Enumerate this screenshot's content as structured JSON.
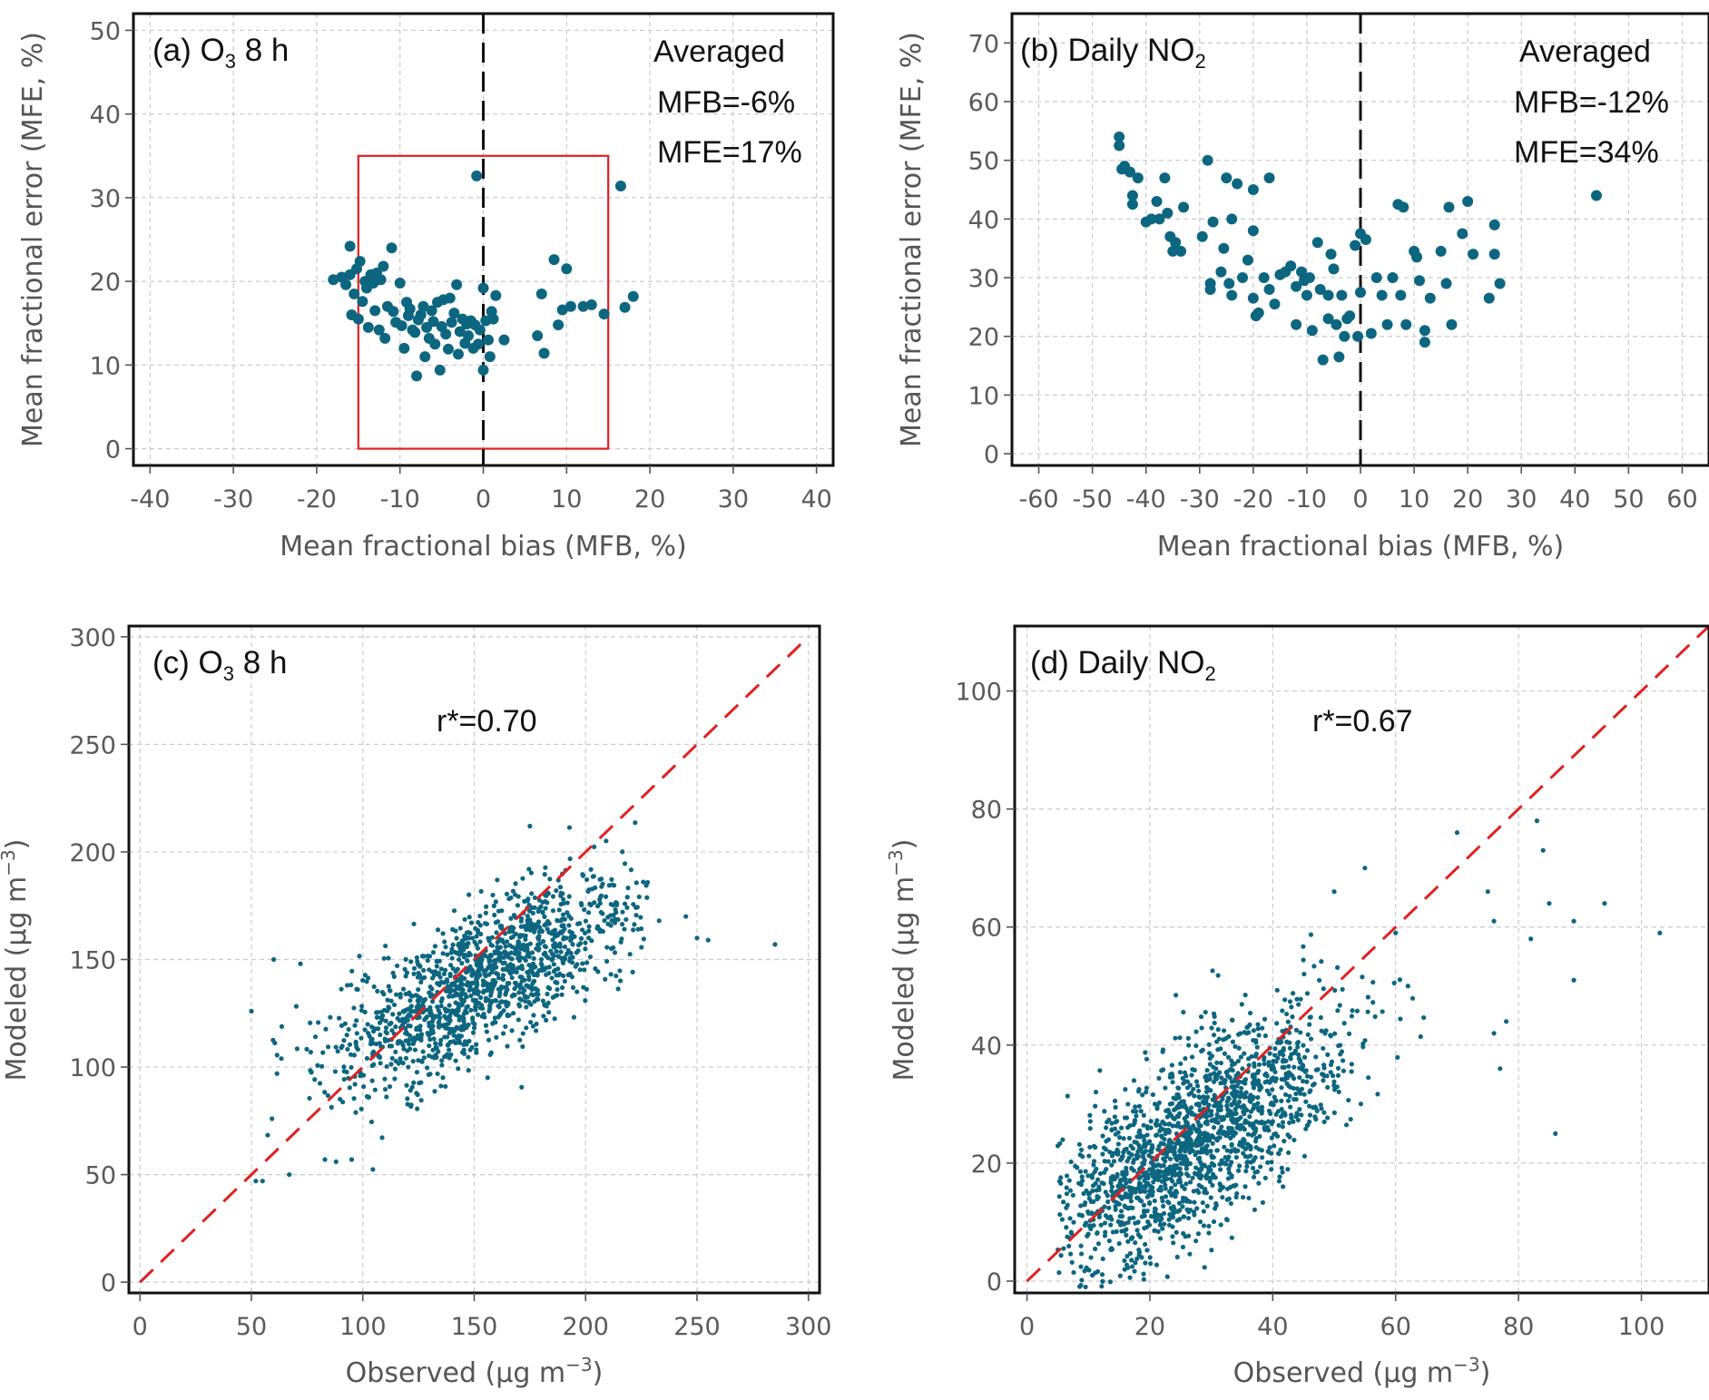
{
  "colors": {
    "points": "#0d6680",
    "reference_box": "#e02020",
    "one_to_one_line": "#e02020",
    "zero_line": "#111111"
  },
  "chart_data": [
    {
      "id": "a",
      "type": "scatter",
      "title_parts": [
        "(a)",
        "O",
        "3",
        " 8 h"
      ],
      "xlabel": "Mean fractional bias (MFB, %)",
      "ylabel": "Mean fractional error (MFE, %)",
      "xlim": [
        -42,
        42
      ],
      "ylim": [
        -2,
        52
      ],
      "xticks": [
        -40,
        -30,
        -20,
        -10,
        0,
        10,
        20,
        30,
        40
      ],
      "yticks": [
        0,
        10,
        20,
        30,
        40,
        50
      ],
      "zero_line_x": 0,
      "reference_box": {
        "x": [
          -15,
          15
        ],
        "y": [
          0,
          35
        ]
      },
      "annotations": [
        "Averaged",
        "MFB=-6%",
        "MFE=17%"
      ],
      "points": [
        [
          -18,
          20.2
        ],
        [
          -17,
          20.5
        ],
        [
          -16.5,
          19.6
        ],
        [
          -16,
          24.2
        ],
        [
          -16,
          20.8
        ],
        [
          -15.8,
          16
        ],
        [
          -15.5,
          18.5
        ],
        [
          -15.2,
          21.5
        ],
        [
          -15,
          15.5
        ],
        [
          -14.8,
          22.4
        ],
        [
          -14.5,
          17.6
        ],
        [
          -14.2,
          20
        ],
        [
          -14,
          19.2
        ],
        [
          -13.8,
          14.5
        ],
        [
          -13.5,
          20.8
        ],
        [
          -13.2,
          19.8
        ],
        [
          -13,
          16.5
        ],
        [
          -12.8,
          21
        ],
        [
          -12.5,
          14.2
        ],
        [
          -12.3,
          20.2
        ],
        [
          -12,
          21.8
        ],
        [
          -11.8,
          13.2
        ],
        [
          -11.5,
          17
        ],
        [
          -11,
          24
        ],
        [
          -10.8,
          16.4
        ],
        [
          -10.5,
          15.1
        ],
        [
          -10,
          19.8
        ],
        [
          -9.8,
          14.7
        ],
        [
          -9.5,
          12
        ],
        [
          -9.2,
          17.5
        ],
        [
          -9,
          15.9
        ],
        [
          -8.8,
          16.7
        ],
        [
          -8.5,
          14.2
        ],
        [
          -8.2,
          13.9
        ],
        [
          -8,
          8.7
        ],
        [
          -7.8,
          15.4
        ],
        [
          -7.5,
          16
        ],
        [
          -7.2,
          17
        ],
        [
          -7,
          11
        ],
        [
          -6.8,
          14.5
        ],
        [
          -6.5,
          13.2
        ],
        [
          -6.2,
          16.5
        ],
        [
          -6,
          15.2
        ],
        [
          -5.8,
          12.5
        ],
        [
          -5.5,
          17.5
        ],
        [
          -5.2,
          9.4
        ],
        [
          -5,
          14.6
        ],
        [
          -4.8,
          17.8
        ],
        [
          -4.5,
          13.7
        ],
        [
          -4.2,
          11.9
        ],
        [
          -4,
          18
        ],
        [
          -3.8,
          15.1
        ],
        [
          -3.5,
          16.2
        ],
        [
          -3.2,
          19.6
        ],
        [
          -3,
          11.3
        ],
        [
          -2.8,
          14
        ],
        [
          -2.5,
          15.5
        ],
        [
          -2.2,
          12.6
        ],
        [
          -2,
          14.9
        ],
        [
          -1.8,
          13.5
        ],
        [
          -1.5,
          15.3
        ],
        [
          -1.2,
          12
        ],
        [
          -1,
          14.8
        ],
        [
          -0.8,
          32.6
        ],
        [
          -0.6,
          12.5
        ],
        [
          -0.4,
          14.2
        ],
        [
          0,
          19.2
        ],
        [
          0,
          9.4
        ],
        [
          0.3,
          15.3
        ],
        [
          0.6,
          13
        ],
        [
          0.8,
          11
        ],
        [
          1,
          16.4
        ],
        [
          1.2,
          15.5
        ],
        [
          1.5,
          18.3
        ],
        [
          2.5,
          13
        ],
        [
          6.5,
          13.5
        ],
        [
          7,
          18.5
        ],
        [
          7.3,
          11.4
        ],
        [
          8.5,
          22.6
        ],
        [
          9,
          14.8
        ],
        [
          9.5,
          16.6
        ],
        [
          10,
          21.5
        ],
        [
          10.5,
          17
        ],
        [
          12,
          17
        ],
        [
          13,
          17.2
        ],
        [
          14.5,
          16.1
        ],
        [
          16.5,
          31.4
        ],
        [
          17,
          16.9
        ],
        [
          18,
          18.2
        ]
      ]
    },
    {
      "id": "b",
      "type": "scatter",
      "title_parts": [
        "(b)",
        " Daily NO",
        "2"
      ],
      "xlabel": "Mean fractional bias (MFB, %)",
      "ylabel": "Mean fractional error (MFE, %)",
      "xlim": [
        -65,
        65
      ],
      "ylim": [
        -2,
        75
      ],
      "xticks": [
        -60,
        -50,
        -40,
        -30,
        -20,
        -10,
        0,
        10,
        20,
        30,
        40,
        50,
        60
      ],
      "yticks": [
        0,
        10,
        20,
        30,
        40,
        50,
        60,
        70
      ],
      "zero_line_x": 0,
      "annotations": [
        "Averaged",
        "MFB=-12%",
        "MFE=34%"
      ],
      "points": [
        [
          -45,
          54
        ],
        [
          -45,
          52.5
        ],
        [
          -44.5,
          48.5
        ],
        [
          -44,
          49
        ],
        [
          -43,
          48
        ],
        [
          -42.5,
          44
        ],
        [
          -42.5,
          42.5
        ],
        [
          -41.5,
          47
        ],
        [
          -40,
          39.5
        ],
        [
          -39,
          40
        ],
        [
          -38,
          43
        ],
        [
          -37.5,
          40
        ],
        [
          -36.5,
          47
        ],
        [
          -36,
          41
        ],
        [
          -35.5,
          37
        ],
        [
          -35,
          34.5
        ],
        [
          -34.5,
          36
        ],
        [
          -33.5,
          34.5
        ],
        [
          -33,
          42
        ],
        [
          -29.5,
          37
        ],
        [
          -28.5,
          50
        ],
        [
          -28,
          29
        ],
        [
          -28,
          28
        ],
        [
          -27.5,
          39.5
        ],
        [
          -26,
          31
        ],
        [
          -25.5,
          35
        ],
        [
          -25,
          47
        ],
        [
          -24.5,
          29
        ],
        [
          -24,
          27
        ],
        [
          -24,
          40
        ],
        [
          -23,
          46
        ],
        [
          -22,
          30
        ],
        [
          -21,
          33
        ],
        [
          -20,
          38
        ],
        [
          -20,
          45
        ],
        [
          -20,
          26.5
        ],
        [
          -19.5,
          23.5
        ],
        [
          -19,
          24
        ],
        [
          -18,
          30
        ],
        [
          -17,
          47
        ],
        [
          -17,
          28
        ],
        [
          -16,
          25.5
        ],
        [
          -15,
          30.5
        ],
        [
          -14,
          31
        ],
        [
          -13,
          32
        ],
        [
          -12,
          28.5
        ],
        [
          -12,
          22
        ],
        [
          -11,
          31
        ],
        [
          -10.5,
          29.5
        ],
        [
          -10,
          27
        ],
        [
          -9.5,
          30
        ],
        [
          -9,
          21
        ],
        [
          -8,
          36
        ],
        [
          -7.5,
          28
        ],
        [
          -7,
          16
        ],
        [
          -6,
          27
        ],
        [
          -6,
          23
        ],
        [
          -5.5,
          34
        ],
        [
          -5,
          31.5
        ],
        [
          -4.5,
          22
        ],
        [
          -4,
          16.5
        ],
        [
          -3.5,
          27
        ],
        [
          -3,
          20
        ],
        [
          -2.5,
          23
        ],
        [
          -2,
          23.5
        ],
        [
          -1,
          35.5
        ],
        [
          0,
          37.5
        ],
        [
          -0.5,
          20
        ],
        [
          0,
          27.5
        ],
        [
          1,
          36.5
        ],
        [
          2,
          20.5
        ],
        [
          3,
          30
        ],
        [
          4,
          27
        ],
        [
          5,
          22
        ],
        [
          6,
          30
        ],
        [
          7,
          42.5
        ],
        [
          7.5,
          27
        ],
        [
          8,
          42
        ],
        [
          8.5,
          22
        ],
        [
          10,
          34.5
        ],
        [
          10.5,
          33.5
        ],
        [
          11,
          29.5
        ],
        [
          12,
          19
        ],
        [
          12,
          21
        ],
        [
          13,
          26.5
        ],
        [
          15,
          34.5
        ],
        [
          16,
          29
        ],
        [
          16.5,
          42
        ],
        [
          17,
          22
        ],
        [
          19,
          37.5
        ],
        [
          20,
          43
        ],
        [
          21,
          34
        ],
        [
          24,
          26.5
        ],
        [
          25,
          39
        ],
        [
          25,
          34
        ],
        [
          26,
          29
        ],
        [
          44,
          44
        ]
      ]
    },
    {
      "id": "c",
      "type": "scatter",
      "title_parts": [
        "(c)",
        "O",
        "3",
        " 8 h"
      ],
      "annotation": "r*=0.70",
      "xlabel_parts": [
        "Observed (µg m",
        "−3",
        ")"
      ],
      "ylabel_parts": [
        "Modeled (µg m",
        "−3",
        ")"
      ],
      "xlim": [
        -5,
        305
      ],
      "ylim": [
        -5,
        305
      ],
      "xticks": [
        0,
        50,
        100,
        150,
        200,
        250,
        300
      ],
      "yticks": [
        0,
        50,
        100,
        150,
        200,
        250,
        300
      ],
      "one_to_one": [
        [
          0,
          0
        ],
        [
          300,
          300
        ]
      ],
      "n_points": 1400,
      "point_cloud": {
        "x_mean": 155,
        "x_sd": 34,
        "x_range": [
          52,
          228
        ],
        "slope": 0.52,
        "intercept": 60,
        "noise_sd": 17
      },
      "outliers": [
        [
          52,
          47
        ],
        [
          55,
          47
        ],
        [
          67,
          50
        ],
        [
          50,
          126
        ],
        [
          60,
          150
        ],
        [
          72,
          148
        ],
        [
          83,
          57
        ],
        [
          88,
          56
        ],
        [
          95,
          57
        ],
        [
          233,
          168
        ],
        [
          245,
          170
        ],
        [
          250,
          160
        ],
        [
          255,
          159
        ],
        [
          285,
          157
        ],
        [
          175,
          212
        ]
      ]
    },
    {
      "id": "d",
      "type": "scatter",
      "title_parts": [
        "(d)",
        " Daily NO",
        "2"
      ],
      "annotation": "r*=0.67",
      "xlabel_parts": [
        "Observed (µg m",
        "−3",
        ")"
      ],
      "ylabel_parts": [
        "Modeled (µg m",
        "−3",
        ")"
      ],
      "xlim": [
        -2,
        111
      ],
      "ylim": [
        -2,
        111
      ],
      "xticks": [
        0,
        20,
        40,
        60,
        80,
        100
      ],
      "yticks": [
        0,
        20,
        40,
        60,
        80,
        100
      ],
      "one_to_one": [
        [
          0,
          0
        ],
        [
          111,
          111
        ]
      ],
      "n_points": 1700,
      "point_cloud": {
        "x_mean": 27,
        "x_sd": 12,
        "x_range": [
          5,
          65
        ],
        "slope": 0.62,
        "intercept": 7,
        "noise_sd": 7.5
      },
      "outliers": [
        [
          70,
          76
        ],
        [
          75,
          66
        ],
        [
          76,
          61
        ],
        [
          78,
          44
        ],
        [
          82,
          58
        ],
        [
          83,
          78
        ],
        [
          84,
          73
        ],
        [
          85,
          64
        ],
        [
          86,
          25
        ],
        [
          89,
          61
        ],
        [
          89,
          51
        ],
        [
          94,
          64
        ],
        [
          103,
          59
        ],
        [
          76,
          42
        ],
        [
          77,
          36
        ],
        [
          60,
          59
        ],
        [
          62,
          50
        ],
        [
          55,
          70
        ],
        [
          50,
          66
        ]
      ]
    }
  ]
}
